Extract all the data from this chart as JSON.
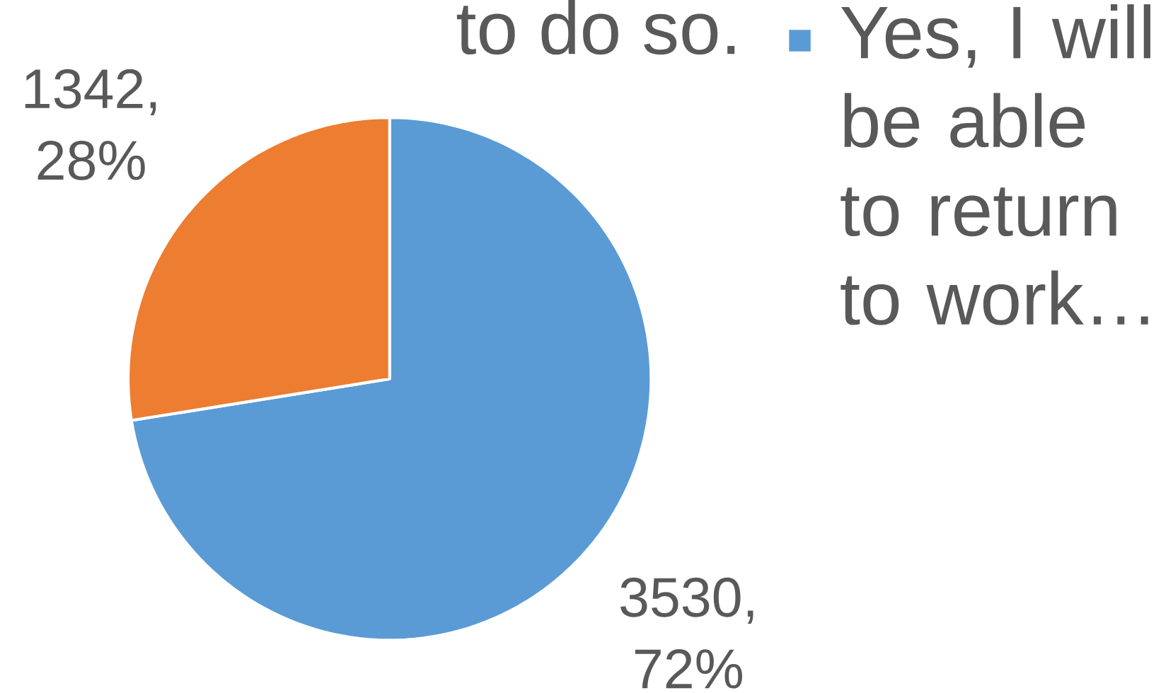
{
  "chart_data": {
    "type": "pie",
    "categories": [
      "Yes, I will be able to return to work…",
      null
    ],
    "values": [
      3530,
      1342
    ],
    "colors": [
      "#5b9bd5",
      "#ed7d31"
    ],
    "value_labels": [
      "3530, 72%",
      "1342, 28%"
    ],
    "legend": "right",
    "annotations": [
      "to do so."
    ]
  }
}
